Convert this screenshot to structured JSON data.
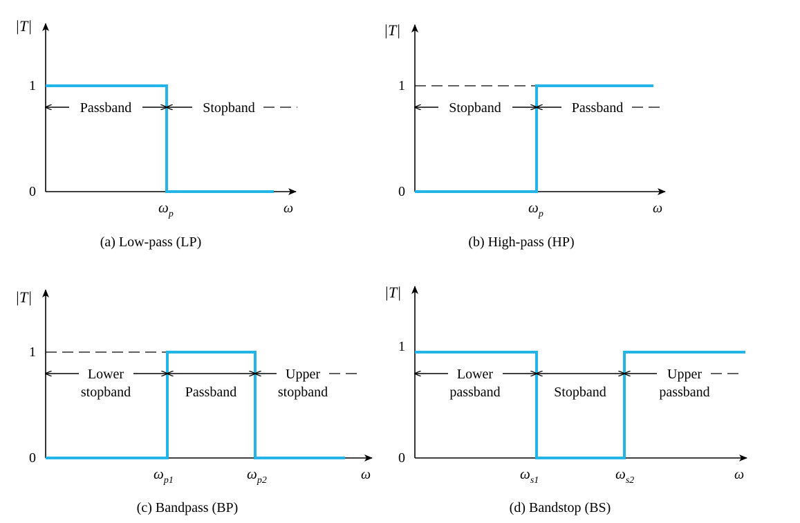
{
  "colors": {
    "response": "#23b4e8",
    "axis": "#000000"
  },
  "axis_labels": {
    "y": "|T|",
    "x": "ω",
    "one": "1",
    "zero": "0"
  },
  "panels": [
    {
      "caption": "(a) Low-pass (LP)",
      "edges": [
        {
          "sym": "ω",
          "sub": "p"
        }
      ],
      "bands": [
        {
          "lines": [
            "Passband"
          ]
        },
        {
          "lines": [
            "Stopband"
          ]
        }
      ]
    },
    {
      "caption": "(b) High-pass (HP)",
      "edges": [
        {
          "sym": "ω",
          "sub": "p"
        }
      ],
      "bands": [
        {
          "lines": [
            "Stopband"
          ]
        },
        {
          "lines": [
            "Passband"
          ]
        }
      ]
    },
    {
      "caption": "(c) Bandpass (BP)",
      "edges": [
        {
          "sym": "ω",
          "sub": "p1"
        },
        {
          "sym": "ω",
          "sub": "p2"
        }
      ],
      "bands": [
        {
          "lines": [
            "Lower",
            "stopband"
          ]
        },
        {
          "lines": [
            "Passband"
          ]
        },
        {
          "lines": [
            "Upper",
            "stopband"
          ]
        }
      ]
    },
    {
      "caption": "(d) Bandstop (BS)",
      "edges": [
        {
          "sym": "ω",
          "sub": "s1"
        },
        {
          "sym": "ω",
          "sub": "s2"
        }
      ],
      "bands": [
        {
          "lines": [
            "Lower",
            "passband"
          ]
        },
        {
          "lines": [
            "Stopband"
          ]
        },
        {
          "lines": [
            "Upper",
            "passband"
          ]
        }
      ]
    }
  ]
}
